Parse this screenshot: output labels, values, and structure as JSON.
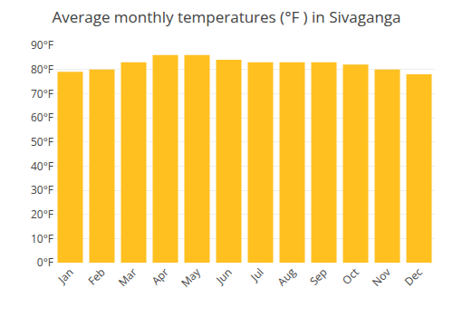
{
  "chart_data": {
    "type": "bar",
    "title": "Average monthly temperatures (°F ) in Sivaganga",
    "categories": [
      "Jan",
      "Feb",
      "Mar",
      "Apr",
      "May",
      "Jun",
      "Jul",
      "Aug",
      "Sep",
      "Oct",
      "Nov",
      "Dec"
    ],
    "values": [
      79,
      80,
      83,
      86,
      86,
      84,
      83,
      83,
      83,
      82,
      80,
      78
    ],
    "color": "#FFC020",
    "ylim": [
      0,
      90
    ],
    "yticks": [
      {
        "value": 0,
        "label": "0°F"
      },
      {
        "value": 10,
        "label": "10°F"
      },
      {
        "value": 20,
        "label": "20°F"
      },
      {
        "value": 30,
        "label": "30°F"
      },
      {
        "value": 40,
        "label": "40°F"
      },
      {
        "value": 50,
        "label": "50°F"
      },
      {
        "value": 60,
        "label": "60°F"
      },
      {
        "value": 70,
        "label": "70°F"
      },
      {
        "value": 80,
        "label": "80°F"
      },
      {
        "value": 90,
        "label": "90°F"
      }
    ],
    "grid": true
  }
}
